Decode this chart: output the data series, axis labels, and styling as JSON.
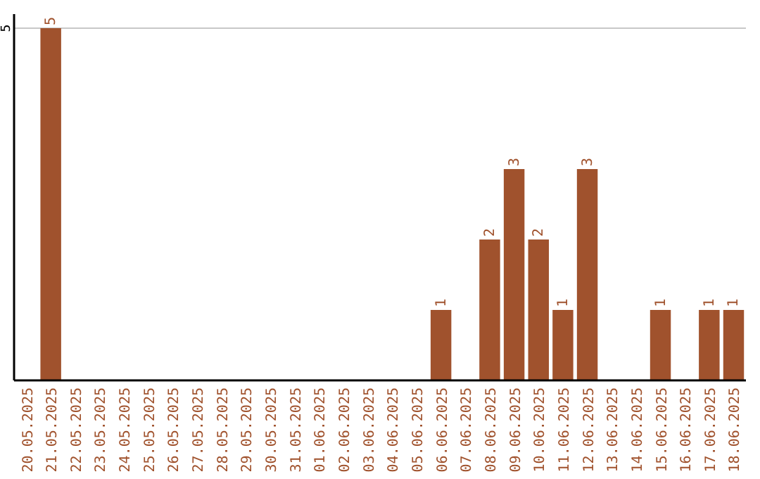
{
  "chart_data": {
    "type": "bar",
    "categories": [
      "20.05.2025",
      "21.05.2025",
      "22.05.2025",
      "23.05.2025",
      "24.05.2025",
      "25.05.2025",
      "26.05.2025",
      "27.05.2025",
      "28.05.2025",
      "29.05.2025",
      "30.05.2025",
      "31.05.2025",
      "01.06.2025",
      "02.06.2025",
      "03.06.2025",
      "04.06.2025",
      "05.06.2025",
      "06.06.2025",
      "07.06.2025",
      "08.06.2025",
      "09.06.2025",
      "10.06.2025",
      "11.06.2025",
      "12.06.2025",
      "13.06.2025",
      "14.06.2025",
      "15.06.2025",
      "16.06.2025",
      "17.06.2025",
      "18.06.2025"
    ],
    "values": [
      0,
      5,
      0,
      0,
      0,
      0,
      0,
      0,
      0,
      0,
      0,
      0,
      0,
      0,
      0,
      0,
      0,
      1,
      0,
      2,
      3,
      2,
      1,
      3,
      0,
      0,
      1,
      0,
      1,
      1
    ],
    "value_labels": [
      null,
      "5",
      null,
      null,
      null,
      null,
      null,
      null,
      null,
      null,
      null,
      null,
      null,
      null,
      null,
      null,
      null,
      "1",
      null,
      "2",
      "3",
      "2",
      "1",
      "3",
      null,
      null,
      "1",
      null,
      "1",
      "1"
    ],
    "color": "#a0522d",
    "ylim": [
      0,
      5
    ],
    "yticks": [
      5
    ],
    "ref_lines": [
      {
        "axis": "y",
        "value": 5,
        "color": "#c8c8c8"
      }
    ]
  }
}
